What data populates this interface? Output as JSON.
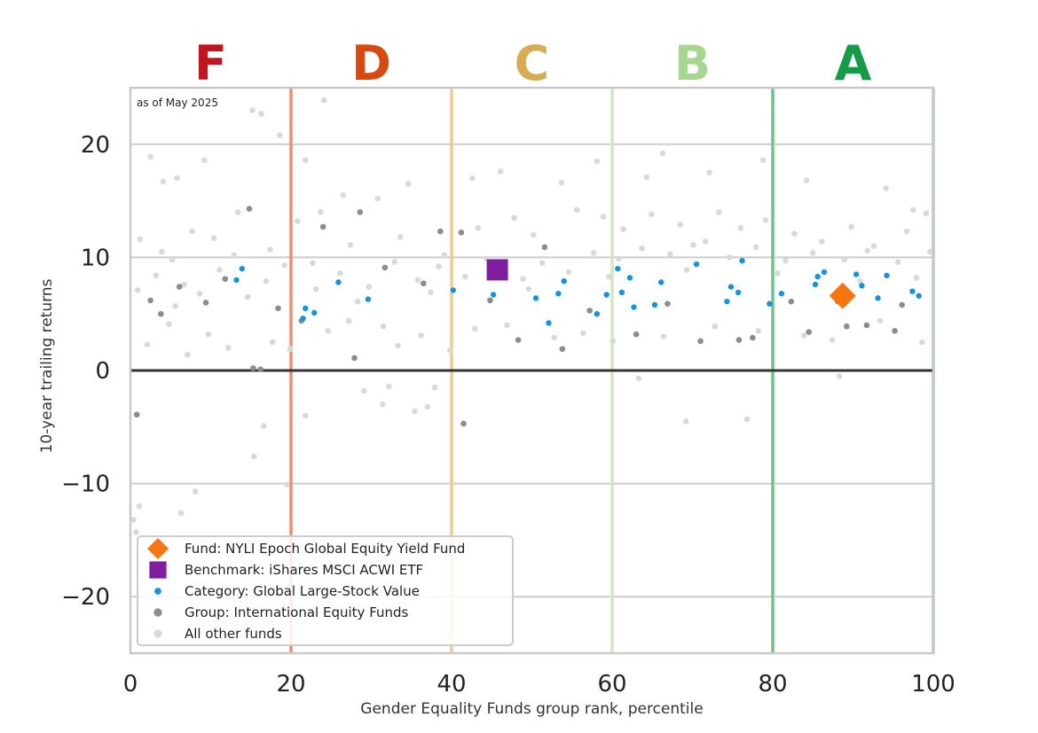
{
  "chart_data": {
    "type": "scatter",
    "title": "",
    "note": "as of May 2025",
    "xlabel": "Gender Equality Funds group rank, percentile",
    "ylabel": "10-year trailing returns",
    "xlim": [
      0,
      100
    ],
    "ylim": [
      -25,
      25
    ],
    "x_ticks": [
      0,
      20,
      40,
      60,
      80,
      100
    ],
    "y_ticks": [
      20,
      10,
      0,
      -10,
      -20
    ],
    "y_tick_labels": [
      "20",
      "10",
      "0",
      "−10",
      "−20"
    ],
    "grid": "horizontal",
    "legend_placement": "lower-left",
    "grade_bands": [
      {
        "grade": "F",
        "x_start": 0,
        "x_end": 20,
        "color": "#c0141e",
        "line_color": "#ef8e6e"
      },
      {
        "grade": "D",
        "x_start": 20,
        "x_end": 40,
        "color": "#d9480f",
        "line_color": "#f0cc8e"
      },
      {
        "grade": "C",
        "x_start": 40,
        "x_end": 60,
        "color": "#d6ad55",
        "line_color": "#cfe8c2"
      },
      {
        "grade": "B",
        "x_start": 60,
        "x_end": 80,
        "color": "#a8d690",
        "line_color": "#6fc48a"
      },
      {
        "grade": "A",
        "x_start": 80,
        "x_end": 100,
        "color": "#159a48",
        "line_color": "#9fd2a8"
      }
    ],
    "series": [
      {
        "name": "Fund: NYLI Epoch Global Equity Yield Fund",
        "marker": "diamond",
        "color": "#f7760f",
        "points": [
          [
            88.7,
            6.6
          ]
        ]
      },
      {
        "name": "Benchmark: iShares MSCI ACWI ETF",
        "marker": "square",
        "color": "#7f1fa0",
        "points": [
          [
            45.7,
            8.9
          ]
        ]
      },
      {
        "name": "Category: Global Large-Stock Value",
        "marker": "dot",
        "color": "#1493e0",
        "points": [
          [
            13.2,
            8.0
          ],
          [
            13.9,
            9.0
          ],
          [
            21.5,
            4.6
          ],
          [
            21.8,
            5.5
          ],
          [
            22.9,
            5.1
          ],
          [
            25.9,
            7.8
          ],
          [
            29.6,
            6.3
          ],
          [
            40.2,
            7.1
          ],
          [
            45.2,
            6.7
          ],
          [
            50.5,
            6.4
          ],
          [
            52.1,
            4.2
          ],
          [
            53.3,
            6.8
          ],
          [
            54.0,
            7.9
          ],
          [
            58.1,
            5.0
          ],
          [
            59.3,
            6.7
          ],
          [
            60.7,
            9.0
          ],
          [
            61.2,
            6.9
          ],
          [
            62.2,
            8.2
          ],
          [
            62.7,
            5.6
          ],
          [
            65.3,
            5.8
          ],
          [
            66.1,
            7.8
          ],
          [
            70.5,
            9.4
          ],
          [
            74.3,
            6.1
          ],
          [
            74.8,
            7.4
          ],
          [
            75.7,
            6.9
          ],
          [
            76.2,
            9.7
          ],
          [
            79.6,
            5.9
          ],
          [
            81.1,
            6.8
          ],
          [
            85.3,
            7.6
          ],
          [
            85.6,
            8.3
          ],
          [
            86.4,
            8.7
          ],
          [
            88.1,
            6.1
          ],
          [
            90.4,
            8.5
          ],
          [
            91.1,
            7.5
          ],
          [
            93.1,
            6.4
          ],
          [
            94.2,
            8.4
          ],
          [
            97.4,
            7.0
          ],
          [
            98.2,
            6.6
          ]
        ]
      },
      {
        "name": "Group: International Equity Funds",
        "marker": "dot",
        "color": "#8c8c8c",
        "points": [
          [
            0.8,
            -3.9
          ],
          [
            15.3,
            0.2
          ],
          [
            16.2,
            0.1
          ],
          [
            21.3,
            4.4
          ],
          [
            24.0,
            12.7
          ],
          [
            27.9,
            1.1
          ],
          [
            28.6,
            14.0
          ],
          [
            38.6,
            12.3
          ],
          [
            41.2,
            12.2
          ],
          [
            41.5,
            -4.7
          ],
          [
            48.3,
            2.7
          ],
          [
            53.8,
            1.9
          ],
          [
            63.0,
            3.2
          ],
          [
            71.0,
            2.6
          ],
          [
            75.8,
            2.7
          ],
          [
            77.5,
            2.9
          ],
          [
            84.5,
            3.4
          ],
          [
            89.2,
            3.9
          ],
          [
            91.7,
            4.0
          ],
          [
            95.2,
            3.5
          ],
          [
            2.5,
            6.2
          ],
          [
            3.8,
            5.0
          ],
          [
            6.1,
            7.4
          ],
          [
            9.4,
            6.0
          ],
          [
            11.8,
            8.1
          ],
          [
            14.8,
            14.3
          ],
          [
            18.4,
            5.5
          ],
          [
            31.7,
            9.1
          ],
          [
            36.5,
            7.7
          ],
          [
            44.8,
            6.2
          ],
          [
            51.6,
            10.9
          ],
          [
            57.2,
            5.3
          ],
          [
            66.9,
            5.9
          ],
          [
            82.3,
            6.1
          ],
          [
            96.1,
            5.8
          ]
        ]
      },
      {
        "name": "All other funds",
        "marker": "dot",
        "color": "#d6dbd3",
        "points": [
          [
            0.4,
            -13.2
          ],
          [
            0.7,
            -14.3
          ],
          [
            1.1,
            -12.0
          ],
          [
            6.3,
            -12.6
          ],
          [
            8.1,
            -10.7
          ],
          [
            16.6,
            -4.9
          ],
          [
            15.4,
            -7.6
          ],
          [
            19.5,
            -10.1
          ],
          [
            21.8,
            -4.0
          ],
          [
            29.1,
            -1.8
          ],
          [
            31.4,
            -3.0
          ],
          [
            32.2,
            -1.4
          ],
          [
            31.5,
            3.9
          ],
          [
            35.4,
            -3.6
          ],
          [
            37.9,
            -1.5
          ],
          [
            37.0,
            -3.2
          ],
          [
            63.3,
            -0.7
          ],
          [
            69.2,
            -4.5
          ],
          [
            76.8,
            -4.3
          ],
          [
            88.3,
            -0.5
          ],
          [
            15.2,
            23.0
          ],
          [
            16.3,
            22.7
          ],
          [
            18.6,
            20.8
          ],
          [
            24.1,
            23.9
          ],
          [
            21.8,
            18.6
          ],
          [
            2.5,
            18.9
          ],
          [
            4.1,
            16.7
          ],
          [
            5.8,
            17.0
          ],
          [
            9.2,
            18.6
          ],
          [
            13.4,
            14.0
          ],
          [
            23.7,
            14.0
          ],
          [
            26.5,
            15.5
          ],
          [
            30.8,
            15.2
          ],
          [
            34.6,
            16.5
          ],
          [
            42.6,
            17.0
          ],
          [
            46.1,
            17.6
          ],
          [
            53.7,
            16.6
          ],
          [
            58.1,
            18.5
          ],
          [
            64.3,
            17.1
          ],
          [
            66.3,
            19.2
          ],
          [
            72.1,
            17.5
          ],
          [
            78.8,
            18.6
          ],
          [
            84.2,
            16.8
          ],
          [
            94.1,
            16.1
          ],
          [
            97.5,
            14.2
          ],
          [
            1.2,
            11.6
          ],
          [
            3.9,
            10.5
          ],
          [
            5.2,
            9.8
          ],
          [
            7.7,
            12.3
          ],
          [
            10.4,
            11.7
          ],
          [
            12.9,
            10.2
          ],
          [
            17.4,
            10.7
          ],
          [
            20.8,
            13.2
          ],
          [
            22.7,
            9.5
          ],
          [
            27.4,
            11.1
          ],
          [
            33.6,
            11.8
          ],
          [
            39.1,
            10.2
          ],
          [
            43.3,
            12.6
          ],
          [
            47.8,
            13.5
          ],
          [
            50.2,
            12.0
          ],
          [
            55.6,
            14.2
          ],
          [
            58.9,
            13.6
          ],
          [
            61.4,
            12.5
          ],
          [
            64.9,
            13.8
          ],
          [
            68.5,
            12.9
          ],
          [
            71.6,
            11.4
          ],
          [
            73.3,
            14.0
          ],
          [
            76.0,
            12.6
          ],
          [
            79.1,
            13.3
          ],
          [
            82.7,
            12.1
          ],
          [
            86.1,
            11.4
          ],
          [
            89.8,
            12.7
          ],
          [
            92.6,
            11.0
          ],
          [
            96.7,
            12.3
          ],
          [
            99.1,
            13.9
          ],
          [
            2.1,
            2.3
          ],
          [
            4.8,
            4.1
          ],
          [
            7.1,
            1.4
          ],
          [
            9.7,
            3.2
          ],
          [
            12.2,
            2.0
          ],
          [
            17.7,
            2.5
          ],
          [
            19.9,
            1.9
          ],
          [
            24.6,
            3.5
          ],
          [
            27.2,
            4.4
          ],
          [
            33.3,
            2.2
          ],
          [
            36.2,
            3.1
          ],
          [
            39.8,
            1.8
          ],
          [
            42.9,
            3.7
          ],
          [
            46.9,
            4.0
          ],
          [
            52.8,
            2.9
          ],
          [
            56.4,
            3.3
          ],
          [
            60.1,
            2.6
          ],
          [
            66.4,
            3.0
          ],
          [
            72.8,
            3.9
          ],
          [
            78.2,
            3.5
          ],
          [
            83.9,
            3.1
          ],
          [
            87.4,
            2.7
          ],
          [
            93.4,
            4.4
          ],
          [
            98.6,
            2.5
          ],
          [
            3.2,
            8.4
          ],
          [
            6.7,
            7.6
          ],
          [
            11.1,
            8.9
          ],
          [
            14.6,
            6.5
          ],
          [
            19.2,
            9.3
          ],
          [
            23.1,
            7.2
          ],
          [
            26.1,
            8.6
          ],
          [
            29.7,
            7.4
          ],
          [
            32.9,
            9.6
          ],
          [
            35.8,
            8.0
          ],
          [
            38.4,
            9.2
          ],
          [
            41.7,
            8.3
          ],
          [
            44.3,
            9.9
          ],
          [
            48.9,
            8.1
          ],
          [
            51.3,
            9.5
          ],
          [
            54.6,
            8.7
          ],
          [
            57.7,
            10.4
          ],
          [
            60.8,
            9.9
          ],
          [
            63.7,
            10.8
          ],
          [
            67.2,
            10.3
          ],
          [
            70.1,
            11.1
          ],
          [
            74.6,
            10.0
          ],
          [
            77.9,
            10.9
          ],
          [
            81.6,
            9.7
          ],
          [
            85.0,
            10.4
          ],
          [
            88.9,
            9.8
          ],
          [
            91.8,
            10.6
          ],
          [
            95.6,
            9.6
          ],
          [
            99.6,
            10.5
          ],
          [
            0.9,
            7.1
          ],
          [
            5.6,
            5.7
          ],
          [
            8.6,
            6.8
          ],
          [
            16.9,
            7.9
          ],
          [
            28.3,
            6.1
          ],
          [
            37.4,
            6.9
          ],
          [
            49.6,
            7.2
          ],
          [
            59.6,
            8.3
          ],
          [
            69.3,
            8.9
          ],
          [
            80.6,
            8.6
          ],
          [
            90.9,
            7.9
          ],
          [
            97.9,
            8.2
          ]
        ]
      }
    ]
  }
}
